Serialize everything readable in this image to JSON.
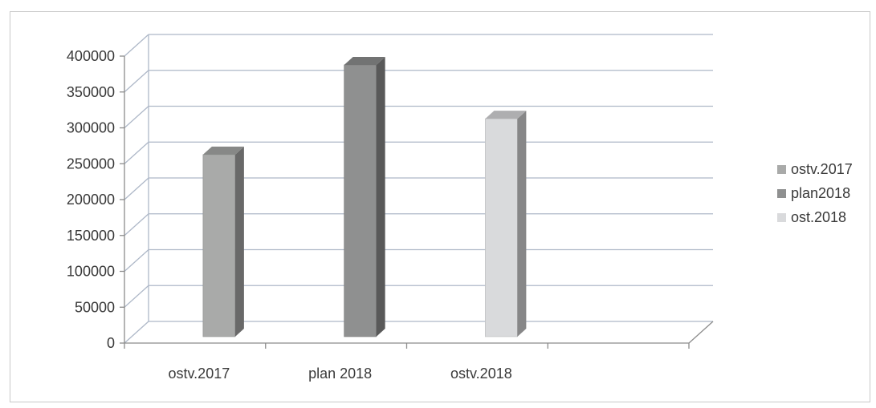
{
  "chart_data": {
    "type": "bar",
    "categories": [
      "ostv.2017",
      "plan 2018",
      "ostv.2018"
    ],
    "series": [
      {
        "name": "ostv.2017",
        "category": "ostv.2017",
        "value": 265000,
        "color": "#a9aaa9"
      },
      {
        "name": "plan2018",
        "category": "plan 2018",
        "value": 390000,
        "color": "#8f9090"
      },
      {
        "name": "ost.2018",
        "category": "ostv.2018",
        "value": 315000,
        "color": "#d9dadc"
      }
    ],
    "ylim": [
      0,
      400000
    ],
    "yticks": [
      0,
      50000,
      100000,
      150000,
      200000,
      250000,
      300000,
      350000,
      400000
    ],
    "ytick_labels": [
      "0",
      "50000",
      "100000",
      "150000",
      "200000",
      "250000",
      "300000",
      "350000",
      "400000"
    ],
    "grid": true,
    "three_d": true,
    "legend_position": "right"
  },
  "colors": {
    "grid": "#aeb8c8",
    "axis": "#8c8c8c",
    "frame": "#c9c9c9"
  }
}
